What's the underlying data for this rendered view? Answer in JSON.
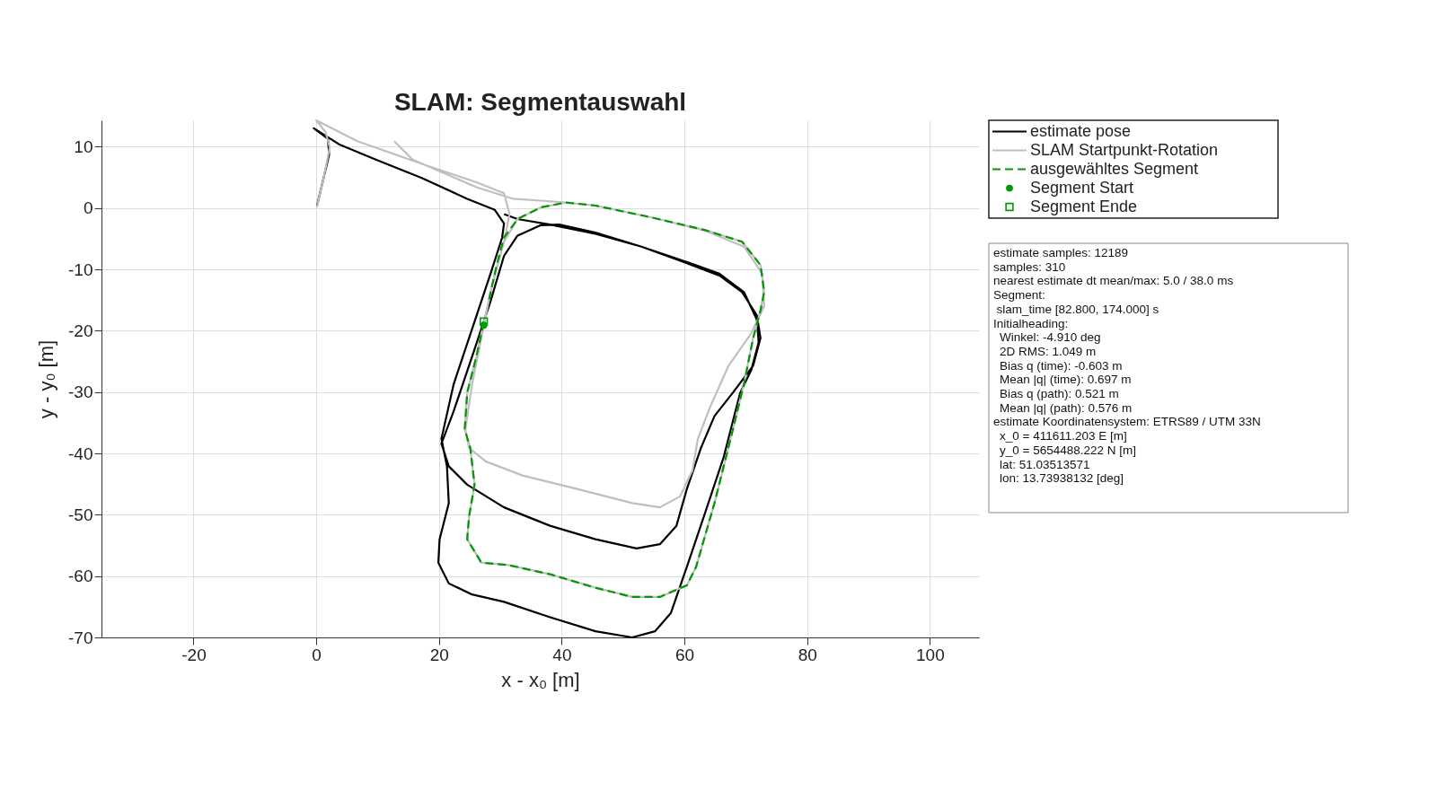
{
  "chart_data": {
    "type": "line",
    "title": "SLAM: Segmentauswahl",
    "xlabel": "x  -  x₀  [m]",
    "ylabel": "y  -  y₀  [m]",
    "xlim": [
      -35,
      108
    ],
    "ylim": [
      -70,
      14.3
    ],
    "xticks": [
      -20,
      0,
      20,
      40,
      60,
      80,
      100
    ],
    "yticks": [
      -70,
      -60,
      -50,
      -40,
      -30,
      -20,
      -10,
      0,
      10
    ],
    "grid": true,
    "legend": "top right",
    "series": [
      {
        "name": "estimate pose",
        "color": "#000000",
        "type": "line",
        "line_style": "solid",
        "x": [
          0.1,
          1.2,
          2.1,
          1.9,
          -0.4,
          3.7,
          9.7,
          17.2,
          24.6,
          29.1,
          30.6,
          30.3,
          28.4,
          25.4,
          22.4,
          20.4,
          21.3,
          21.6,
          20.1,
          19.9,
          21.6,
          25.4,
          30.6,
          38.1,
          45.5,
          51.5,
          55.2,
          57.8,
          60.4,
          63.4,
          66.4,
          69.1,
          70.9,
          72.1,
          71.8,
          69.7,
          65.7,
          60.4,
          53.0,
          45.5,
          39.6,
          36.6,
          32.8,
          30.6,
          28.4,
          25.4,
          22.4,
          20.4,
          21.6,
          24.6,
          30.6,
          38.1,
          45.5,
          52.2,
          56.0,
          58.7,
          60.4,
          62.7,
          64.9,
          67.9,
          71.2,
          72.4,
          71.8,
          69.4,
          65.7,
          60.4,
          53.0,
          45.5,
          38.1,
          32.8,
          30.6
        ],
        "values": [
          0.3,
          4.9,
          8.7,
          11.3,
          13.0,
          10.4,
          7.9,
          4.9,
          1.5,
          -0.3,
          -2.5,
          -4.8,
          -10.7,
          -19.7,
          -28.7,
          -37.6,
          -42.1,
          -48.1,
          -54.0,
          -57.8,
          -61.2,
          -63.0,
          -64.2,
          -66.7,
          -69.0,
          -70.0,
          -69.0,
          -66.0,
          -58.5,
          -49.6,
          -40.6,
          -30.1,
          -26.4,
          -21.9,
          -18.2,
          -13.7,
          -10.7,
          -8.8,
          -6.3,
          -4.0,
          -2.7,
          -2.8,
          -4.5,
          -7.8,
          -15.2,
          -24.2,
          -33.1,
          -38.4,
          -42.1,
          -45.1,
          -48.8,
          -51.8,
          -54.0,
          -55.5,
          -54.8,
          -51.8,
          -45.8,
          -39.1,
          -33.9,
          -30.1,
          -25.7,
          -21.2,
          -17.5,
          -13.7,
          -11.0,
          -9.0,
          -6.3,
          -4.2,
          -2.7,
          -1.8,
          -1.0
        ]
      },
      {
        "name": "SLAM Startpunkt-Rotation",
        "color": "#bfbfbf",
        "type": "line",
        "line_style": "solid",
        "x": [
          0.1,
          1.2,
          2.2,
          1.5,
          0.0,
          6.7,
          17.2,
          26.1,
          30.6,
          31.5,
          30.6,
          28.4,
          26.9,
          25.4,
          24.3,
          24.9,
          27.6,
          33.6,
          42.5,
          51.5,
          56.0,
          59.3,
          61.3,
          62.2,
          64.2,
          67.2,
          70.9,
          73.0,
          72.7,
          69.7,
          63.4,
          54.5,
          45.5,
          40.7,
          36.6,
          32.8,
          30.6,
          29.1,
          27.3,
          26.1,
          24.6,
          24.2,
          25.1,
          25.8,
          24.9,
          24.6,
          26.9,
          31.3,
          38.1,
          45.5,
          51.5,
          56.0,
          60.4,
          61.9,
          64.9,
          67.9,
          69.7,
          71.2,
          72.4,
          73.0,
          72.4,
          69.4,
          63.4,
          54.5,
          45.5,
          40.7,
          36.6,
          32.1,
          26.1,
          20.1,
          15.7,
          12.7
        ],
        "values": [
          0.1,
          4.9,
          9.9,
          12.4,
          14.3,
          10.9,
          7.2,
          4.2,
          2.4,
          -1.0,
          -5.5,
          -13.7,
          -21.2,
          -28.7,
          -36.1,
          -39.1,
          -41.3,
          -43.6,
          -45.8,
          -48.1,
          -48.8,
          -47.0,
          -42.8,
          -37.6,
          -32.4,
          -25.7,
          -20.4,
          -16.0,
          -10.7,
          -6.3,
          -3.7,
          -1.5,
          0.4,
          0.9,
          0.1,
          -1.8,
          -5.5,
          -10.7,
          -18.7,
          -24.2,
          -30.1,
          -36.1,
          -39.1,
          -45.1,
          -50.3,
          -54.0,
          -57.8,
          -58.2,
          -59.7,
          -61.9,
          -63.4,
          -63.4,
          -61.5,
          -58.5,
          -48.1,
          -36.1,
          -28.7,
          -21.2,
          -16.7,
          -13.7,
          -9.3,
          -5.5,
          -3.6,
          -1.5,
          0.4,
          0.9,
          1.2,
          1.5,
          3.4,
          6.0,
          7.9,
          10.9
        ]
      },
      {
        "name": "ausgewähltes Segment",
        "color": "#009900",
        "type": "line",
        "line_style": "dashed",
        "x": [
          27.3,
          26.1,
          24.6,
          24.2,
          25.1,
          25.8,
          24.9,
          24.6,
          26.9,
          31.3,
          38.1,
          45.5,
          51.5,
          56.0,
          60.4,
          61.9,
          64.9,
          67.9,
          69.7,
          71.2,
          72.4,
          73.0,
          72.4,
          69.4,
          63.4,
          54.5,
          45.5,
          40.7,
          36.6,
          32.8,
          30.6,
          29.4,
          28.1
        ],
        "values": [
          -18.7,
          -24.2,
          -30.1,
          -36.1,
          -39.1,
          -45.1,
          -50.3,
          -54.0,
          -57.8,
          -58.2,
          -59.7,
          -61.9,
          -63.4,
          -63.4,
          -61.5,
          -58.5,
          -48.1,
          -36.1,
          -28.7,
          -21.2,
          -16.7,
          -13.7,
          -9.3,
          -5.5,
          -3.6,
          -1.5,
          0.4,
          0.9,
          0.1,
          -1.8,
          -4.8,
          -9.3,
          -15.2
        ]
      },
      {
        "name": "Segment Start",
        "color": "#009900",
        "type": "scatter",
        "marker": "circle",
        "x": [
          27.3
        ],
        "values": [
          -19.1
        ]
      },
      {
        "name": "Segment Ende",
        "color": "#009900",
        "type": "scatter",
        "marker": "square",
        "x": [
          27.3
        ],
        "values": [
          -18.5
        ]
      }
    ],
    "annotations": [
      "estimate samples: 12189",
      "samples: 310",
      "nearest estimate dt mean/max: 5.0 / 38.0 ms",
      "Segment:",
      " slam_time [82.800, 174.000] s",
      "Initialheading:",
      "  Winkel: -4.910 deg",
      "  2D RMS: 1.049 m",
      "  Bias q (time): -0.603 m",
      "  Mean |q| (time): 0.697 m",
      "  Bias q (path): 0.521 m",
      "  Mean |q| (path): 0.576 m",
      "estimate Koordinatensystem: ETRS89 / UTM 33N",
      "  x_0 = 411611.203 E [m]",
      "  y_0 = 5654488.222 N [m]",
      "  lat: 51.03513571",
      "  lon: 13.73938132 [deg]"
    ]
  }
}
